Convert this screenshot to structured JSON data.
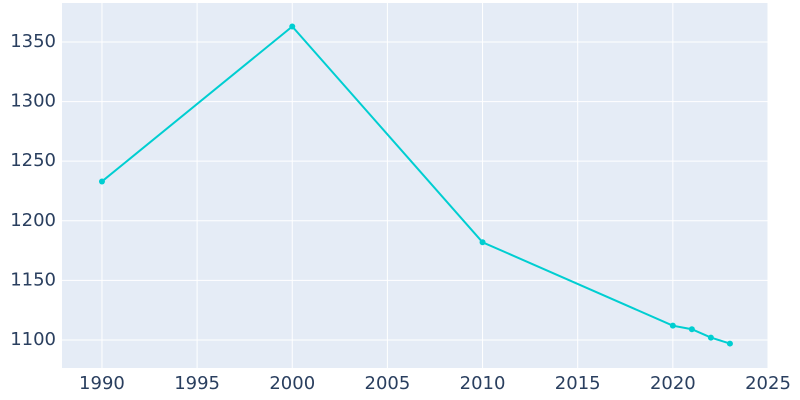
{
  "chart_data": {
    "type": "line",
    "x": [
      1990,
      2000,
      2010,
      2020,
      2021,
      2022,
      2023
    ],
    "series": [
      {
        "color": "#00ced1",
        "values": [
          1233,
          1363,
          1182,
          1112,
          1109,
          1102,
          1097
        ]
      }
    ],
    "xlim": [
      1987.9,
      2025
    ],
    "xticks": [
      1990,
      1995,
      2000,
      2005,
      2010,
      2015,
      2020,
      2025
    ],
    "ylim": [
      1076.5,
      1382.7
    ],
    "yticks": [
      1100,
      1150,
      1200,
      1250,
      1300,
      1350
    ],
    "grid": true
  }
}
